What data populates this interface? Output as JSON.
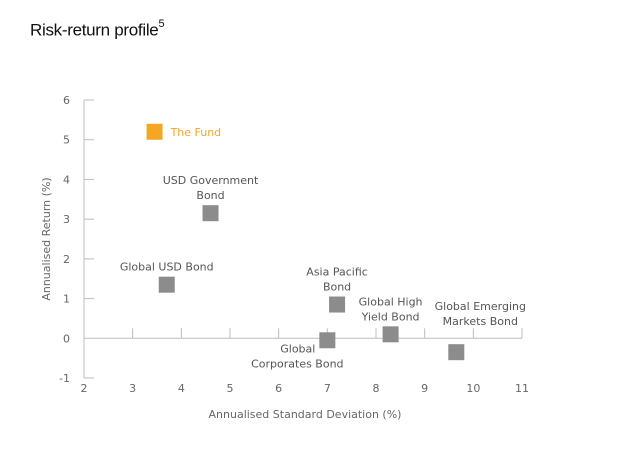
{
  "chart_data": {
    "type": "scatter",
    "title": "Risk-return profile",
    "title_superscript": "5",
    "xlabel": "Annualised Standard Deviation (%)",
    "ylabel": "Annualised Return (%)",
    "xlim": [
      2,
      11
    ],
    "ylim": [
      -1,
      6
    ],
    "xticks": [
      2,
      3,
      4,
      5,
      6,
      7,
      8,
      9,
      10,
      11
    ],
    "yticks": [
      -1,
      0,
      1,
      2,
      3,
      4,
      5,
      6
    ],
    "grid": false,
    "colors": {
      "highlight": "#F5A623",
      "default": "#8C8C8C",
      "axis": "#BDBDBD"
    },
    "points": [
      {
        "name": "The Fund",
        "label_lines": [
          "The Fund"
        ],
        "x": 3.45,
        "y": 5.2,
        "highlight": true,
        "label_pos": "right"
      },
      {
        "name": "USD Government Bond",
        "label_lines": [
          "USD Government",
          "Bond"
        ],
        "x": 4.6,
        "y": 3.15,
        "highlight": false,
        "label_pos": "above"
      },
      {
        "name": "Global USD Bond",
        "label_lines": [
          "Global USD Bond"
        ],
        "x": 3.7,
        "y": 1.35,
        "highlight": false,
        "label_pos": "above"
      },
      {
        "name": "Asia Pacific Bond",
        "label_lines": [
          "Asia Pacific",
          "Bond"
        ],
        "x": 7.2,
        "y": 0.85,
        "highlight": false,
        "label_pos": "above"
      },
      {
        "name": "Global Corporates Bond",
        "label_lines": [
          "Global",
          "Corporates Bond"
        ],
        "x": 7.0,
        "y": -0.05,
        "highlight": false,
        "label_pos": "below-left"
      },
      {
        "name": "Global High Yield Bond",
        "label_lines": [
          "Global High",
          "Yield Bond"
        ],
        "x": 8.3,
        "y": 0.1,
        "highlight": false,
        "label_pos": "above"
      },
      {
        "name": "Global Emerging Markets Bond",
        "label_lines": [
          "Global Emerging",
          "Markets Bond"
        ],
        "x": 9.65,
        "y": -0.35,
        "highlight": false,
        "label_pos": "above-high"
      }
    ]
  }
}
